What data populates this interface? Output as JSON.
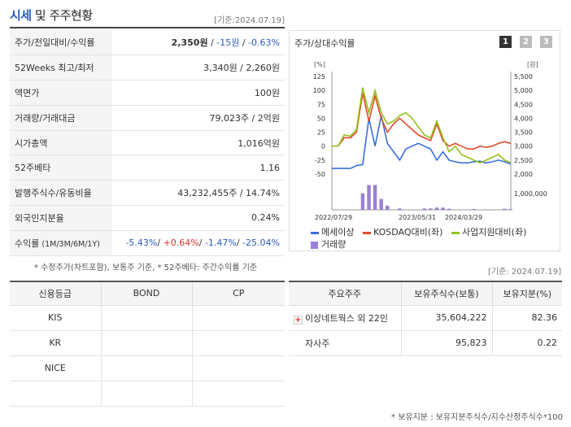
{
  "header": {
    "title_main": "시세",
    "title_rest": " 및 주주현황",
    "date": "[기준:2024.07.19]"
  },
  "quote_rows": [
    {
      "label": "주가/전일대비/수익률",
      "value_price": "2,350원",
      "value_sep1": " / ",
      "value_change": "-15원",
      "value_sep2": " / ",
      "value_pct": "-0.63%"
    },
    {
      "label": "52Weeks 최고/최저",
      "value": "3,340원 / 2,260원"
    },
    {
      "label": "액면가",
      "value": "100원"
    },
    {
      "label": "거래량/거래대금",
      "value": "79,023주 / 2억원"
    },
    {
      "label": "시가총액",
      "value": "1,016억원"
    },
    {
      "label": "52주베타",
      "value": "1.16"
    },
    {
      "label": "발행주식수/유동비율",
      "value": "43,232,455주 / 14.74%"
    },
    {
      "label": "외국인지분율",
      "value": "0.24%"
    }
  ],
  "returns_row": {
    "label_main": "수익률",
    "label_sub": " (1M/3M/6M/1Y)",
    "r1m": "-5.43%",
    "r3m": "+0.64%",
    "r6m": "-1.47%",
    "r1y": "-25.04%",
    "sep": "/ "
  },
  "note_left": "* 수정주가(차트포함), 보통주 기준, * 52주베타: 주간수익률 기준",
  "chart": {
    "title": "주가/상대수익률",
    "buttons": [
      "1",
      "2",
      "3"
    ],
    "left_unit": "[%]",
    "right_unit": "[원]",
    "legend": [
      "메세이상",
      "KOSDAQ대비(좌)",
      "사업지원대비(좌)",
      "거래량"
    ]
  },
  "chart_data": {
    "type": "line",
    "x_ticks": [
      "2022/07/29",
      "2023/05/31",
      "2024/03/29"
    ],
    "y_left_ticks": [
      "125",
      "100",
      "75",
      "50",
      "25",
      "0",
      "-25",
      "-50"
    ],
    "y_left_range": [
      -50,
      125
    ],
    "y_right_ticks": [
      "5,500",
      "5,000",
      "4,500",
      "4,000",
      "3,500",
      "3,000",
      "2,500",
      "2,000"
    ],
    "y_right_range": [
      2000,
      5500
    ],
    "volume_tick": "1,000,000",
    "series": [
      {
        "name": "메세이상",
        "color": "#3a6fd8",
        "values": [
          -40,
          -40,
          -40,
          -40,
          -35,
          -33,
          50,
          0,
          55,
          5,
          -10,
          -25,
          -5,
          0,
          5,
          0,
          -5,
          -25,
          -10,
          -25,
          -28,
          -30,
          -30,
          -28,
          -27,
          -30,
          -28,
          -25,
          -28,
          -32
        ]
      },
      {
        "name": "KOSDAQ대비(좌)",
        "color": "#e04a2a",
        "values": [
          0,
          0,
          15,
          15,
          25,
          95,
          45,
          90,
          50,
          25,
          40,
          50,
          40,
          30,
          20,
          15,
          10,
          40,
          10,
          0,
          5,
          0,
          -5,
          -5,
          0,
          -2,
          0,
          5,
          8,
          5
        ]
      },
      {
        "name": "사업지원대비(좌)",
        "color": "#94c21c",
        "values": [
          0,
          0,
          20,
          18,
          30,
          105,
          60,
          100,
          60,
          40,
          45,
          55,
          60,
          50,
          35,
          20,
          15,
          45,
          15,
          -10,
          0,
          -15,
          -20,
          -25,
          -30,
          -25,
          -20,
          -15,
          -25,
          -30
        ]
      }
    ],
    "volume": [
      0,
      0,
      0,
      0,
      0,
      0.6,
      0.9,
      0.9,
      0.4,
      0.15,
      0,
      0.05,
      0,
      0,
      0,
      0.05,
      0.05,
      0.08,
      0.08,
      0.04,
      0,
      0,
      0,
      0.03,
      0,
      0,
      0,
      0,
      0.04,
      0.03
    ]
  },
  "date_right": "[기준: 2024.07.19]",
  "credit_table": {
    "headers": [
      "신용등급",
      "BOND",
      "CP"
    ],
    "rows": [
      [
        "KIS",
        "",
        ""
      ],
      [
        "KR",
        "",
        ""
      ],
      [
        "NICE",
        "",
        ""
      ],
      [
        "",
        "",
        ""
      ]
    ]
  },
  "holders_table": {
    "headers": [
      "주요주주",
      "보유주식수(보통)",
      "보유지분(%)"
    ],
    "rows": [
      {
        "name": "이상네트웍스 외 22인",
        "shares": "35,604,222",
        "pct": "82.36",
        "expand": "+"
      },
      {
        "name": "자사주",
        "shares": "95,823",
        "pct": "0.22",
        "expand": ""
      }
    ]
  },
  "note_right": "* 보유지분 : 보유지분주식수/지수산정주식수*100"
}
